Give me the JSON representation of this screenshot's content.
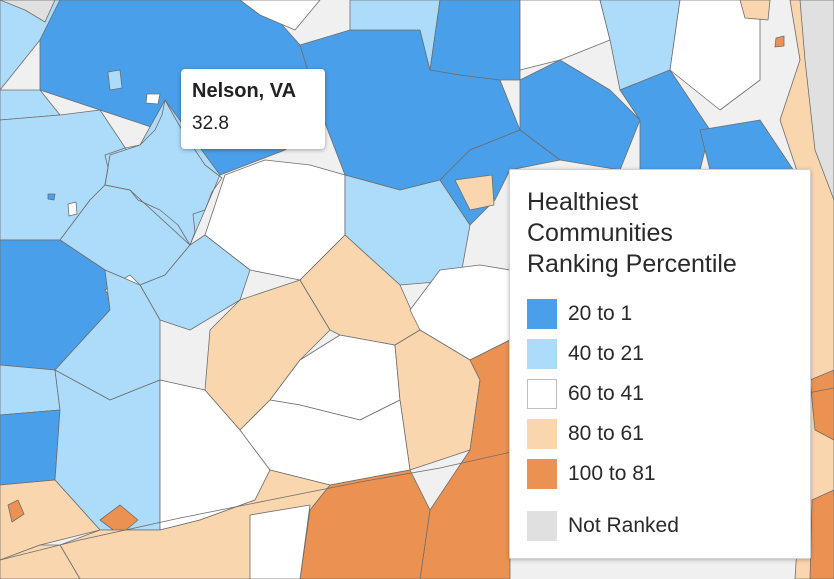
{
  "tooltip": {
    "name": "Nelson, VA",
    "value": "32.8"
  },
  "legend": {
    "title_lines": [
      "Healthiest",
      "Communities",
      "Ranking Percentile"
    ],
    "items": [
      {
        "label": "20 to 1",
        "color": "#4a9fea"
      },
      {
        "label": "40 to 21",
        "color": "#addcfb"
      },
      {
        "label": "60 to 41",
        "color": "#ffffff"
      },
      {
        "label": "80 to 61",
        "color": "#f9d6ad"
      },
      {
        "label": "100 to 81",
        "color": "#eb9253"
      }
    ],
    "not_ranked": {
      "label": "Not Ranked",
      "color": "#e0e0e0"
    }
  },
  "colors": {
    "background": "#f0f0f0",
    "state_border": "#111111",
    "county_border": "#6d6d6d",
    "highlight_outline": "#000000"
  }
}
